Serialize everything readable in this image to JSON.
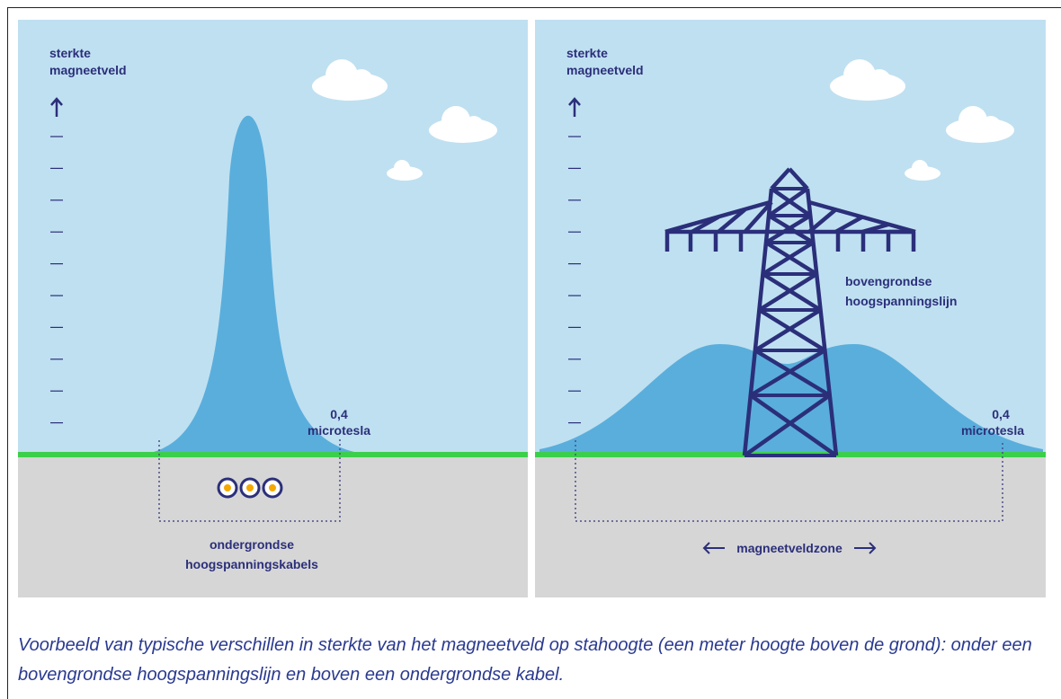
{
  "panels": [
    {
      "axis_label": [
        "sterkte",
        "magneetveld"
      ],
      "threshold_value": "0,4",
      "threshold_unit": "microtesla",
      "label": [
        "ondergrondse",
        "hoogspanningskabels"
      ]
    },
    {
      "axis_label": [
        "sterkte",
        "magneetveld"
      ],
      "threshold_value": "0,4",
      "threshold_unit": "microtesla",
      "label": [
        "bovengrondse",
        "hoogspanningslijn"
      ],
      "zone_label": "magneetveldzone"
    }
  ],
  "caption": "Voorbeeld van typische verschillen in sterkte van het magneetveld op stahoogte (een meter hoogte boven de grond): onder een bovengrondse hoogspanningslijn en boven een ondergrondse kabel."
}
